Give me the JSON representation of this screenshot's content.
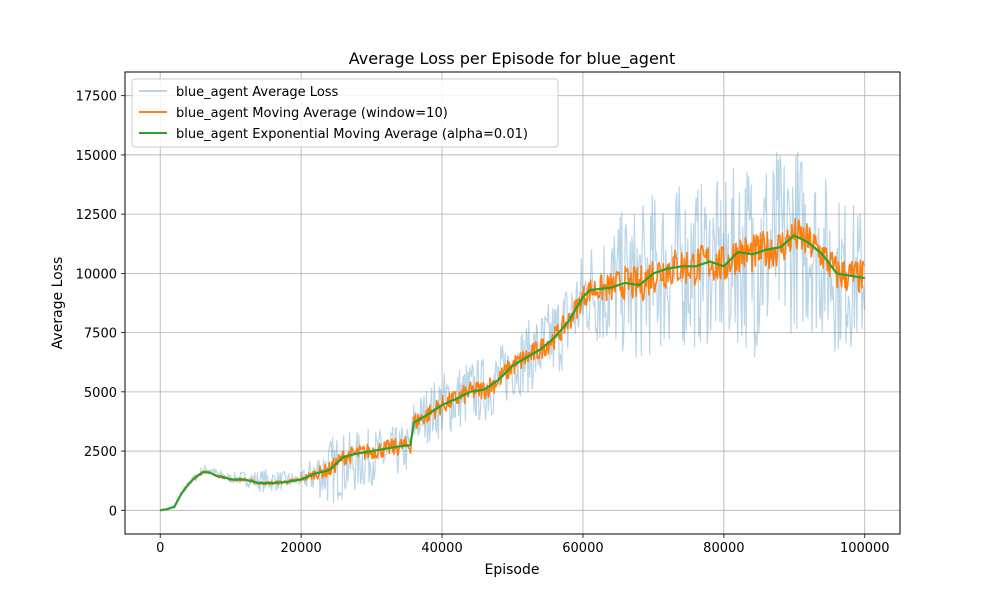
{
  "chart_data": {
    "type": "line",
    "title": "Average Loss per Episode for blue_agent",
    "xlabel": "Episode",
    "ylabel": "Average Loss",
    "xlim": [
      -5000,
      105000
    ],
    "ylim": [
      -1000,
      18500
    ],
    "xticks": [
      0,
      20000,
      40000,
      60000,
      80000,
      100000
    ],
    "xtick_labels": [
      "0",
      "20000",
      "40000",
      "60000",
      "80000",
      "100000"
    ],
    "yticks": [
      0,
      2500,
      5000,
      7500,
      10000,
      12500,
      15000,
      17500
    ],
    "ytick_labels": [
      "0",
      "2500",
      "5000",
      "7500",
      "10000",
      "12500",
      "15000",
      "17500"
    ],
    "grid": true,
    "legend_position": "top-left",
    "series": [
      {
        "name": "blue_agent Average Loss",
        "color": "#1f77b4",
        "opacity": 0.3,
        "x": [
          0,
          1000,
          2000,
          3000,
          4000,
          5000,
          6000,
          7000,
          8000,
          9000,
          10000,
          12000,
          14000,
          16000,
          18000,
          20000,
          22000,
          24000,
          26000,
          28000,
          30000,
          32000,
          34000,
          35500,
          36000,
          38000,
          40000,
          42000,
          44000,
          46000,
          48000,
          50000,
          52000,
          54000,
          56000,
          58000,
          60000,
          61000,
          64000,
          66000,
          68000,
          70000,
          72000,
          74000,
          76000,
          78000,
          80000,
          82000,
          84000,
          86000,
          88000,
          90000,
          92000,
          94000,
          96000,
          98000,
          100000
        ],
        "values": [
          0,
          50,
          150,
          700,
          1100,
          1400,
          1700,
          1750,
          1550,
          1450,
          1350,
          1350,
          1250,
          1250,
          1250,
          1300,
          1550,
          1650,
          1900,
          2050,
          2250,
          2350,
          2500,
          2600,
          3700,
          4050,
          4450,
          4700,
          5000,
          5100,
          5500,
          6100,
          6450,
          6800,
          7300,
          8000,
          9000,
          9300,
          9400,
          9600,
          9500,
          10000,
          10200,
          10300,
          10300,
          10500,
          10300,
          10900,
          10800,
          11000,
          11100,
          11600,
          11300,
          10800,
          10000,
          9900,
          9800
        ],
        "spread_at_x": [
          0,
          5000,
          10000,
          15000,
          20000,
          24000,
          30000,
          36000,
          40000,
          50000,
          60000,
          65000,
          70000,
          80000,
          85000,
          90000,
          95000,
          100000
        ],
        "spread_values": [
          0,
          200,
          200,
          500,
          300,
          1500,
          1200,
          1000,
          1400,
          1400,
          2000,
          3000,
          3500,
          3500,
          4500,
          4000,
          3500,
          3000
        ]
      },
      {
        "name": "blue_agent Moving Average (window=10)",
        "color": "#ff7f0e",
        "x": [
          0,
          1000,
          2000,
          3000,
          4000,
          5000,
          6000,
          7000,
          8000,
          9000,
          10000,
          12000,
          14000,
          16000,
          18000,
          20000,
          22000,
          24000,
          26000,
          28000,
          30000,
          32000,
          34000,
          35500,
          36000,
          38000,
          40000,
          42000,
          44000,
          46000,
          48000,
          50000,
          52000,
          54000,
          56000,
          58000,
          60000,
          61000,
          64000,
          66000,
          68000,
          70000,
          72000,
          74000,
          76000,
          78000,
          80000,
          82000,
          84000,
          86000,
          88000,
          90000,
          92000,
          94000,
          96000,
          98000,
          100000
        ],
        "values": [
          0,
          50,
          150,
          700,
          1100,
          1400,
          1600,
          1600,
          1450,
          1400,
          1300,
          1300,
          1150,
          1150,
          1200,
          1300,
          1550,
          1700,
          2250,
          2400,
          2500,
          2600,
          2700,
          2750,
          3700,
          4050,
          4450,
          4700,
          5000,
          5100,
          5500,
          6100,
          6450,
          6800,
          7300,
          8000,
          9000,
          9300,
          9400,
          9600,
          9500,
          10000,
          10200,
          10300,
          10300,
          10500,
          10300,
          10900,
          10800,
          11000,
          11100,
          11600,
          11300,
          10800,
          10000,
          9900,
          9800
        ],
        "spread_at_x": [
          0,
          5000,
          10000,
          20000,
          24000,
          30000,
          36000,
          40000,
          50000,
          60000,
          70000,
          80000,
          90000,
          100000
        ],
        "spread_values": [
          0,
          60,
          60,
          100,
          350,
          350,
          400,
          400,
          450,
          500,
          850,
          850,
          800,
          750
        ]
      },
      {
        "name": "blue_agent Exponential Moving Average (alpha=0.01)",
        "color": "#2ca02c",
        "x": [
          0,
          1000,
          2000,
          3000,
          4000,
          5000,
          6000,
          7000,
          8000,
          9000,
          10000,
          12000,
          14000,
          16000,
          18000,
          20000,
          22000,
          24000,
          26000,
          28000,
          30000,
          32000,
          34000,
          35500,
          36000,
          38000,
          40000,
          42000,
          44000,
          46000,
          48000,
          50000,
          52000,
          54000,
          56000,
          58000,
          60000,
          61000,
          64000,
          66000,
          68000,
          70000,
          72000,
          74000,
          76000,
          78000,
          80000,
          82000,
          84000,
          86000,
          88000,
          90000,
          92000,
          94000,
          96000,
          98000,
          100000
        ],
        "values": [
          0,
          50,
          150,
          700,
          1100,
          1400,
          1600,
          1600,
          1450,
          1400,
          1300,
          1300,
          1150,
          1150,
          1200,
          1300,
          1550,
          1700,
          2250,
          2400,
          2500,
          2600,
          2700,
          2750,
          3700,
          4050,
          4450,
          4700,
          5000,
          5100,
          5500,
          6100,
          6450,
          6800,
          7300,
          8000,
          9000,
          9300,
          9400,
          9600,
          9500,
          10000,
          10200,
          10300,
          10300,
          10500,
          10300,
          10900,
          10800,
          11000,
          11100,
          11600,
          11300,
          10800,
          10000,
          9900,
          9800
        ]
      }
    ]
  }
}
